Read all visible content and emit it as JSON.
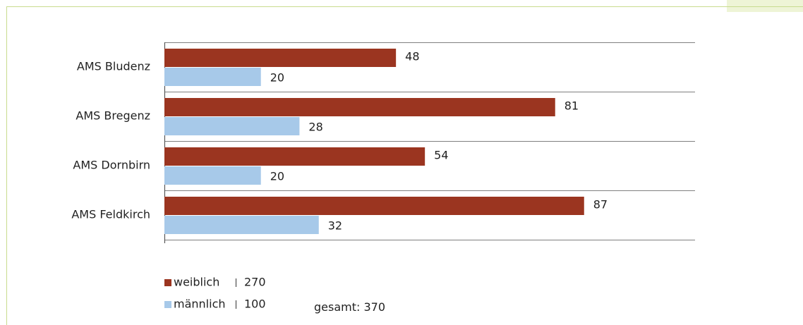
{
  "chart_data": {
    "type": "barh",
    "categories": [
      "AMS Bludenz",
      "AMS Bregenz",
      "AMS Dornbirn",
      "AMS Feldkirch"
    ],
    "series": [
      {
        "name": "weiblich",
        "color": "#9b3520",
        "values": [
          48,
          81,
          54,
          87
        ],
        "total": 270
      },
      {
        "name": "männlich",
        "color": "#a7c9e9",
        "values": [
          20,
          28,
          20,
          32
        ],
        "total": 100
      }
    ],
    "xlim": [
      0,
      110
    ],
    "total_label": "gesamt:",
    "total": 370
  }
}
